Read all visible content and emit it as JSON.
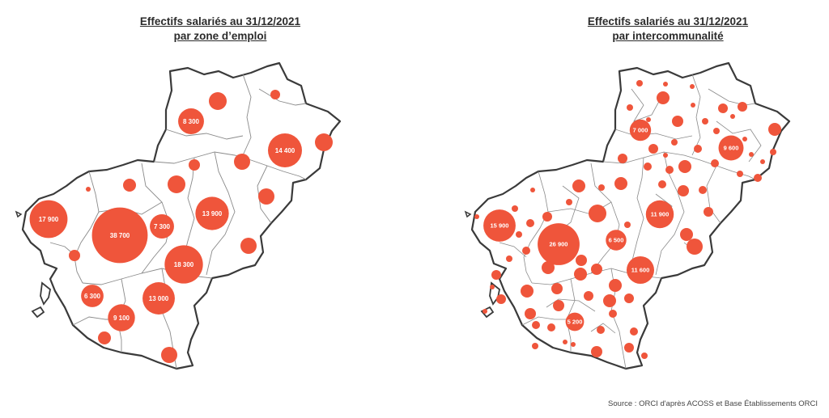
{
  "maps": {
    "left": {
      "title_line1": "Effectifs salariés au 31/12/2021",
      "title_line2": "par zone d’emploi",
      "bubbles": [
        {
          "label": "38 700",
          "value": 38700
        },
        {
          "label": "18 300",
          "value": 18300
        },
        {
          "label": "17 900",
          "value": 17900
        },
        {
          "label": "14 400",
          "value": 14400
        },
        {
          "label": "13 900",
          "value": 13900
        },
        {
          "label": "13 000",
          "value": 13000
        },
        {
          "label": "9 100",
          "value": 9100
        },
        {
          "label": "8 300",
          "value": 8300
        },
        {
          "label": "7 300",
          "value": 7300
        },
        {
          "label": "6 300",
          "value": 6300
        }
      ]
    },
    "right": {
      "title_line1": "Effectifs salariés au 31/12/2021",
      "title_line2": "par intercommunalité",
      "bubbles": [
        {
          "label": "26 900",
          "value": 26900
        },
        {
          "label": "15 900",
          "value": 15900
        },
        {
          "label": "11 900",
          "value": 11900
        },
        {
          "label": "11 600",
          "value": 11600
        },
        {
          "label": "9 600",
          "value": 9600
        },
        {
          "label": "7 000",
          "value": 7000
        },
        {
          "label": "6 500",
          "value": 6500
        },
        {
          "label": "5 200",
          "value": 5200
        }
      ]
    }
  },
  "source": "Source : ORCI d'après ACOSS et Base Établissements ORCI",
  "colors": {
    "bubble": "#ef553b",
    "outline": "#3a3a3a",
    "inner": "#8a8a8a",
    "label": "#ffffff"
  }
}
